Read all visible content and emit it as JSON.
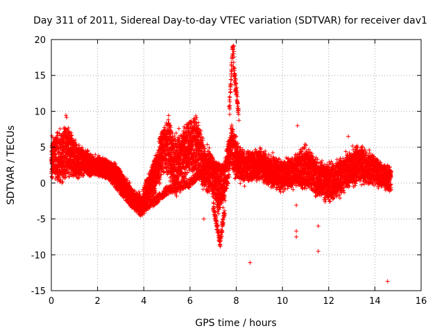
{
  "chart_data": {
    "type": "scatter",
    "title": "Day 311 of 2011, Sidereal Day-to-day VTEC variation (SDTVAR) for receiver dav1",
    "xlabel": "GPS time / hours",
    "ylabel": "SDTVAR / TECUs",
    "xlim": [
      0,
      16
    ],
    "ylim": [
      -15,
      20
    ],
    "xticks": [
      "0",
      "2",
      "4",
      "6",
      "8",
      "10",
      "12",
      "14",
      "16"
    ],
    "yticks": [
      "20",
      "15",
      "10",
      "5",
      "0",
      "-5",
      "-10",
      "-15"
    ],
    "grid": true,
    "marker": "+",
    "color": "#ff0000",
    "series": [
      {
        "name": "SDTVAR",
        "trace_x": [
          0.0,
          0.2,
          0.4,
          0.6,
          0.8,
          1.0,
          1.2,
          1.5,
          1.8,
          2.1,
          2.4,
          2.7,
          3.0,
          3.3,
          3.6,
          3.9,
          4.2,
          4.5,
          4.8,
          5.1,
          5.4,
          5.7,
          6.0,
          6.3,
          6.6,
          6.9,
          7.2,
          7.5,
          7.8,
          8.1,
          8.4,
          8.7,
          9.0,
          9.3,
          9.6,
          9.9,
          10.2,
          10.5,
          10.8,
          11.1,
          11.4,
          11.7,
          12.0,
          12.3,
          12.6,
          12.9,
          13.2,
          13.5,
          13.8,
          14.1,
          14.4,
          14.7
        ],
        "trace_center": [
          3.0,
          3.5,
          4.0,
          4.5,
          4.0,
          3.5,
          3.0,
          2.8,
          2.5,
          2.2,
          2.0,
          1.5,
          0.5,
          -1.0,
          -2.5,
          -3.0,
          -1.0,
          1.5,
          4.5,
          5.0,
          2.5,
          3.5,
          6.0,
          4.5,
          2.5,
          1.5,
          -1.0,
          0.5,
          5.0,
          3.0,
          2.0,
          2.5,
          2.5,
          2.0,
          1.5,
          1.0,
          1.5,
          1.5,
          2.0,
          2.0,
          1.0,
          0.5,
          0.0,
          0.5,
          1.0,
          2.0,
          2.5,
          2.5,
          2.0,
          1.5,
          1.0,
          0.5
        ],
        "trace_spread": [
          3.5,
          4.0,
          4.5,
          5.0,
          4.0,
          3.0,
          2.5,
          2.0,
          1.8,
          1.5,
          1.5,
          1.5,
          1.5,
          1.5,
          1.5,
          2.0,
          2.5,
          3.0,
          4.0,
          5.0,
          5.0,
          4.5,
          5.0,
          5.0,
          4.0,
          3.5,
          4.0,
          3.5,
          4.0,
          3.0,
          2.5,
          2.5,
          2.5,
          2.5,
          2.5,
          2.5,
          2.5,
          2.5,
          3.5,
          3.5,
          3.0,
          3.0,
          3.0,
          3.0,
          3.0,
          3.0,
          3.0,
          3.0,
          2.5,
          2.5,
          2.0,
          2.0
        ],
        "secondary_x": [
          1.5,
          2.0,
          2.5,
          3.0,
          3.5,
          4.0,
          4.5,
          5.0,
          5.5,
          6.0,
          6.5,
          7.0,
          7.5
        ],
        "secondary_y": [
          2.5,
          2.0,
          1.0,
          -1.0,
          -3.0,
          -3.5,
          -2.5,
          -1.0,
          -0.5,
          0.0,
          1.5,
          2.5,
          2.0
        ],
        "spike_x": [
          7.7,
          7.75,
          7.8,
          7.82,
          7.85,
          7.88,
          7.9,
          7.95,
          8.0,
          8.05,
          8.1
        ],
        "spike_y": [
          10.0,
          13.0,
          16.0,
          17.5,
          19.0,
          18.0,
          15.5,
          14.0,
          13.0,
          11.5,
          9.5
        ],
        "trough_x": [
          7.0,
          7.1,
          7.2,
          7.25,
          7.3,
          7.35,
          7.4,
          7.5
        ],
        "trough_y": [
          -3.0,
          -5.0,
          -6.5,
          -7.5,
          -8.5,
          -7.5,
          -6.0,
          -4.0
        ],
        "outliers_x": [
          6.6,
          8.6,
          10.6,
          10.6,
          10.6,
          10.65,
          11.55,
          11.55,
          12.85,
          14.55
        ],
        "outliers_y": [
          -5.0,
          -11.1,
          -6.7,
          -7.5,
          -3.1,
          8.0,
          -6.0,
          -9.5,
          6.5,
          -13.7
        ]
      }
    ]
  }
}
